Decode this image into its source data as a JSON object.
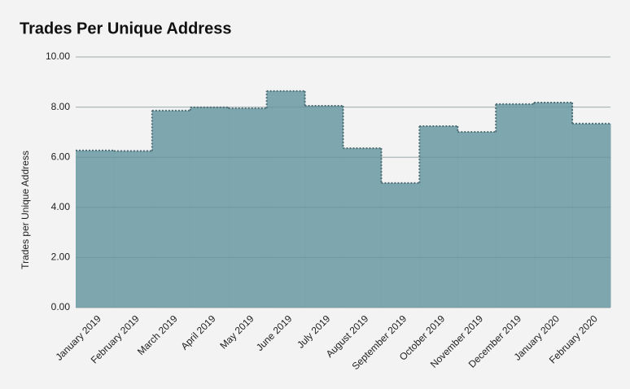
{
  "chart_data": {
    "type": "step-area",
    "title": "Trades Per Unique Address",
    "y_label": "Trades per Unique Address",
    "categories": [
      "January 2019",
      "February 2019",
      "March 2019",
      "April 2019",
      "May 2019",
      "June 2019",
      "July 2019",
      "August 2019",
      "September 2019",
      "October 2019",
      "November 2019",
      "December 2019",
      "January 2020",
      "February 2020"
    ],
    "values": [
      6.27,
      6.25,
      7.86,
      7.99,
      7.95,
      8.64,
      8.05,
      6.36,
      4.97,
      7.24,
      7.01,
      8.12,
      8.18,
      7.34
    ],
    "color": "#79a3ab",
    "ylim": [
      0,
      10
    ],
    "yticks": [
      {
        "value": 0,
        "label": "0.00"
      },
      {
        "value": 2,
        "label": "2.00"
      },
      {
        "value": 4,
        "label": "4.00"
      },
      {
        "value": 6,
        "label": "6.00"
      },
      {
        "value": 8,
        "label": "8.00"
      },
      {
        "value": 10,
        "label": "10.00"
      }
    ],
    "grid": true
  }
}
